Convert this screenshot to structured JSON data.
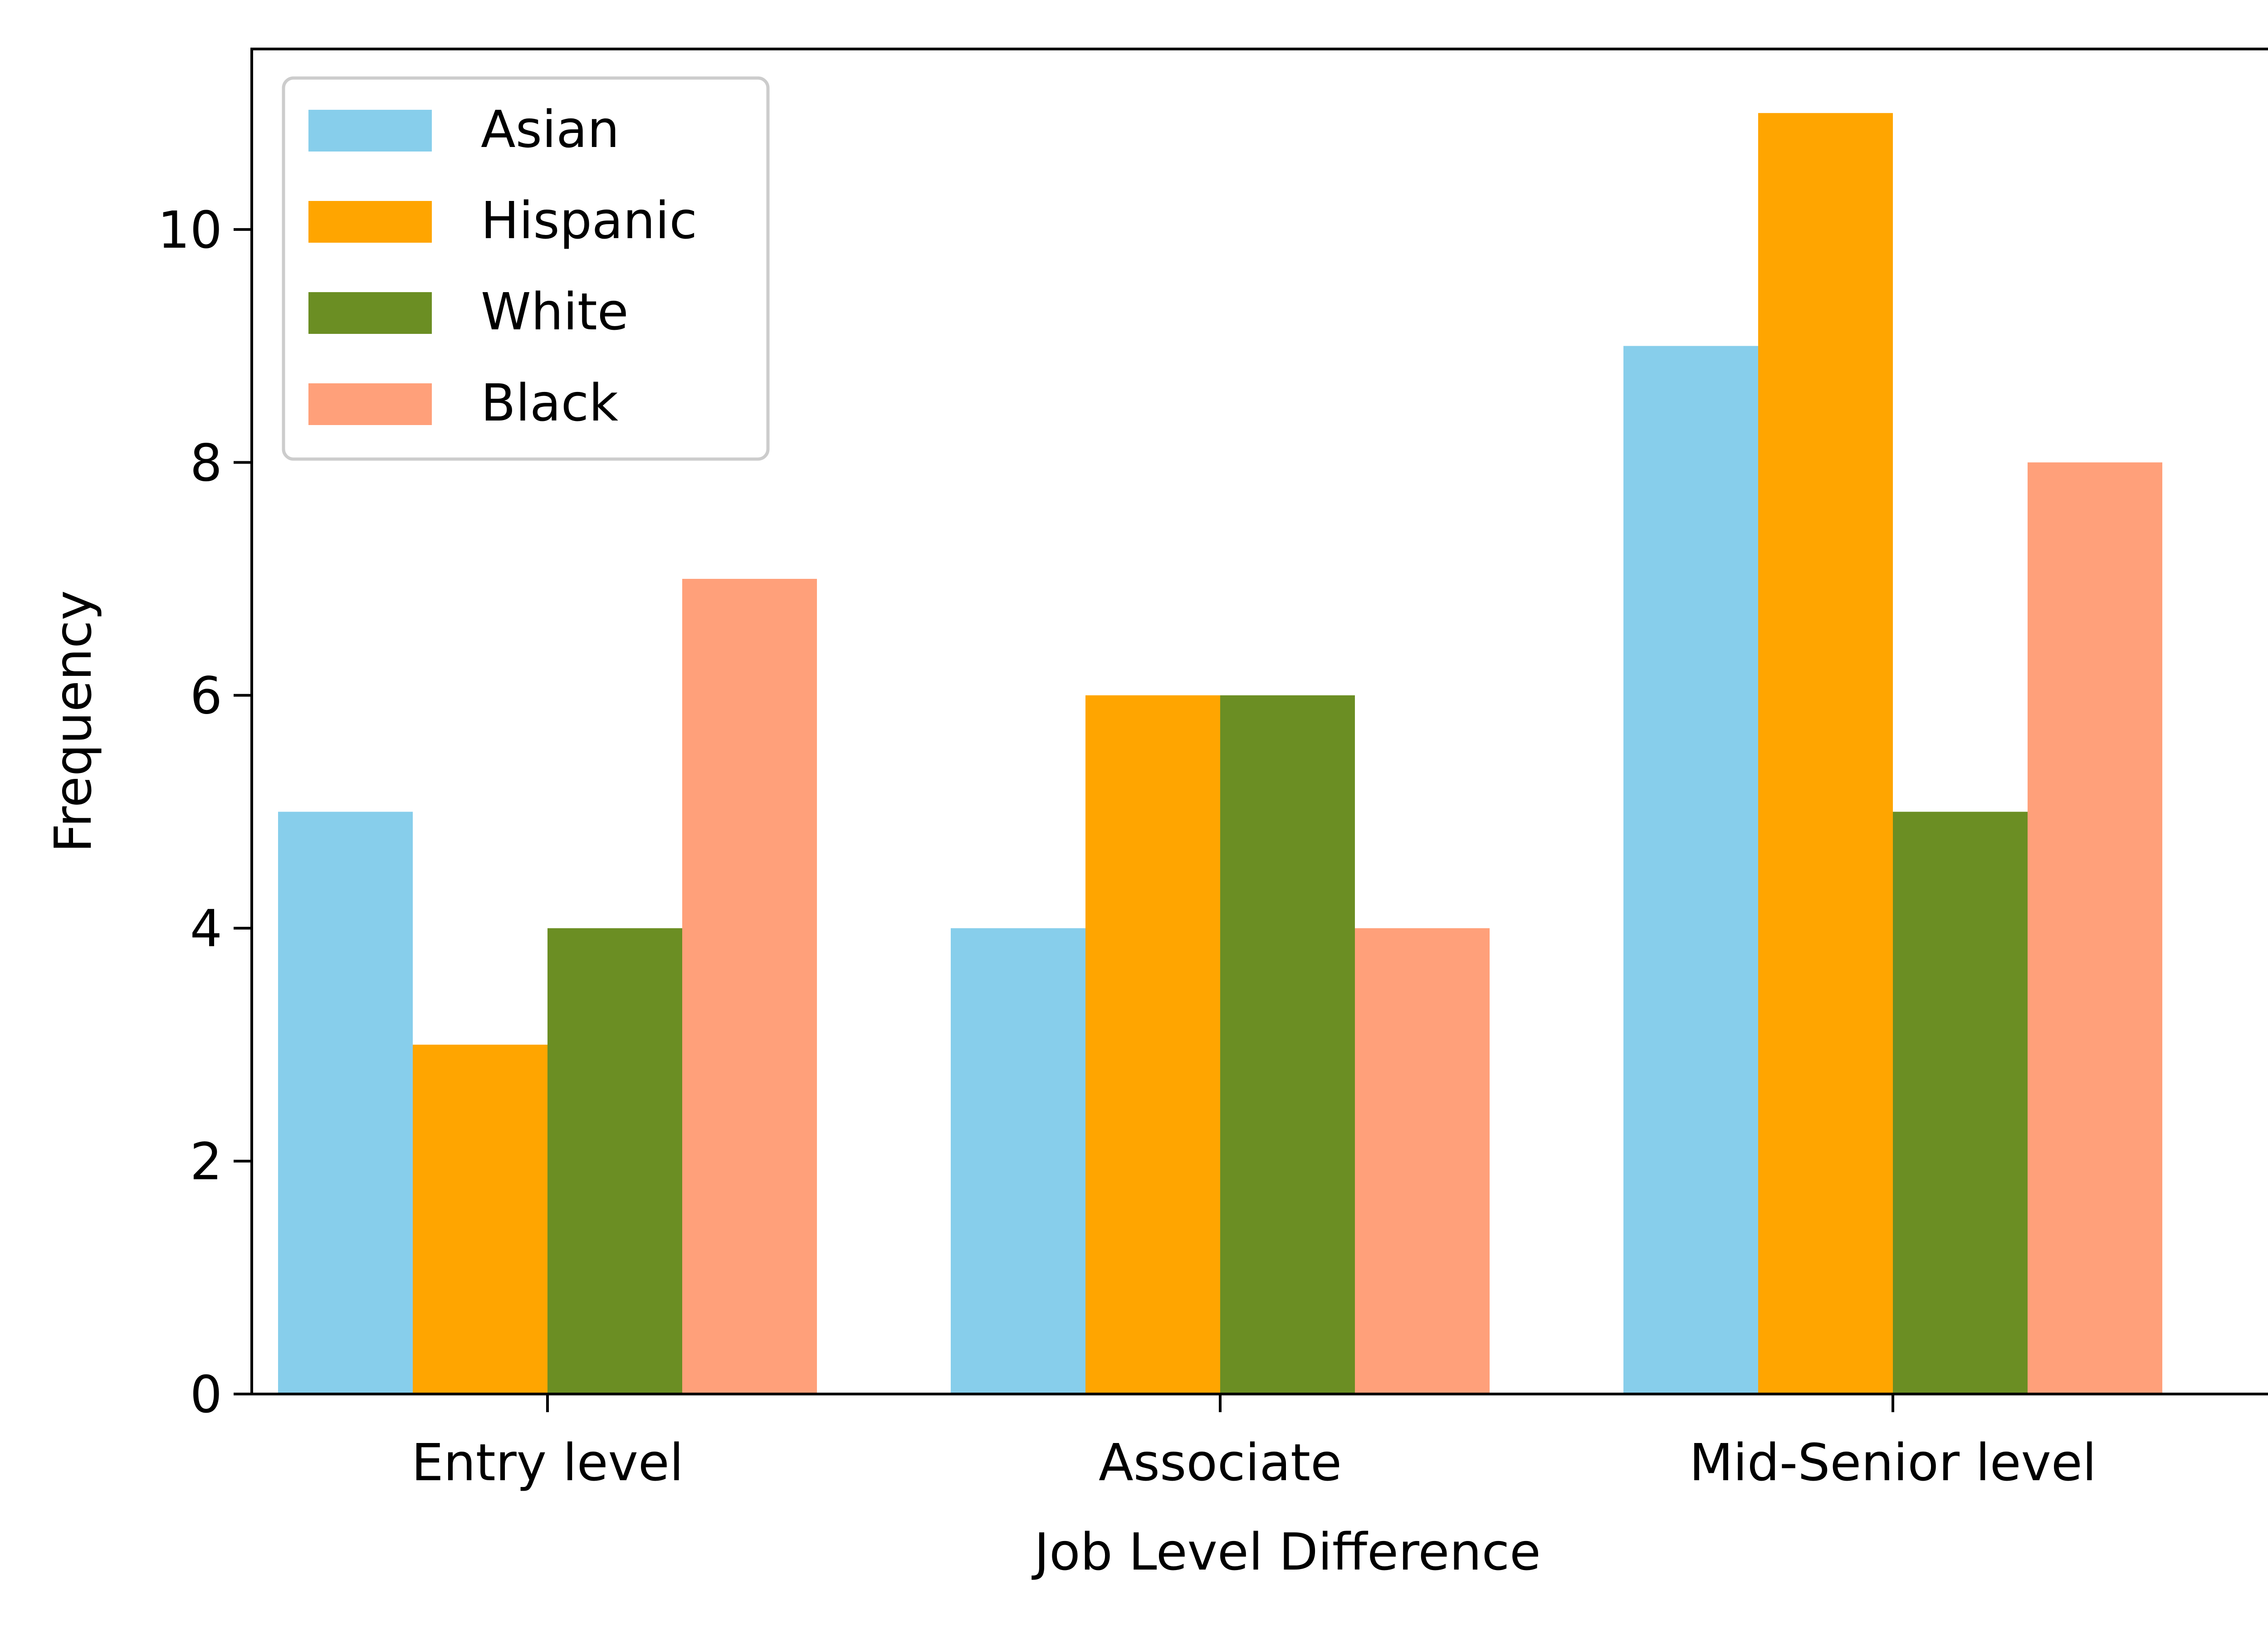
{
  "chart_data": {
    "type": "bar",
    "title": "",
    "xlabel": "Job Level Difference",
    "ylabel": "Frequency",
    "categories": [
      "Entry level",
      "Associate",
      "Mid-Senior level"
    ],
    "series": [
      {
        "name": "Asian",
        "color": "#87CEEB",
        "values": [
          5,
          4,
          9
        ]
      },
      {
        "name": "Hispanic",
        "color": "#FFA500",
        "values": [
          3,
          6,
          11
        ]
      },
      {
        "name": "White",
        "color": "#6B8E23",
        "values": [
          4,
          6,
          5
        ]
      },
      {
        "name": "Black",
        "color": "#FFA07A",
        "values": [
          7,
          4,
          8
        ]
      }
    ],
    "ylim": [
      0,
      11.55
    ],
    "yticks": [
      0,
      2,
      4,
      6,
      8,
      10
    ],
    "grid": false,
    "legend_position": "top-left"
  }
}
